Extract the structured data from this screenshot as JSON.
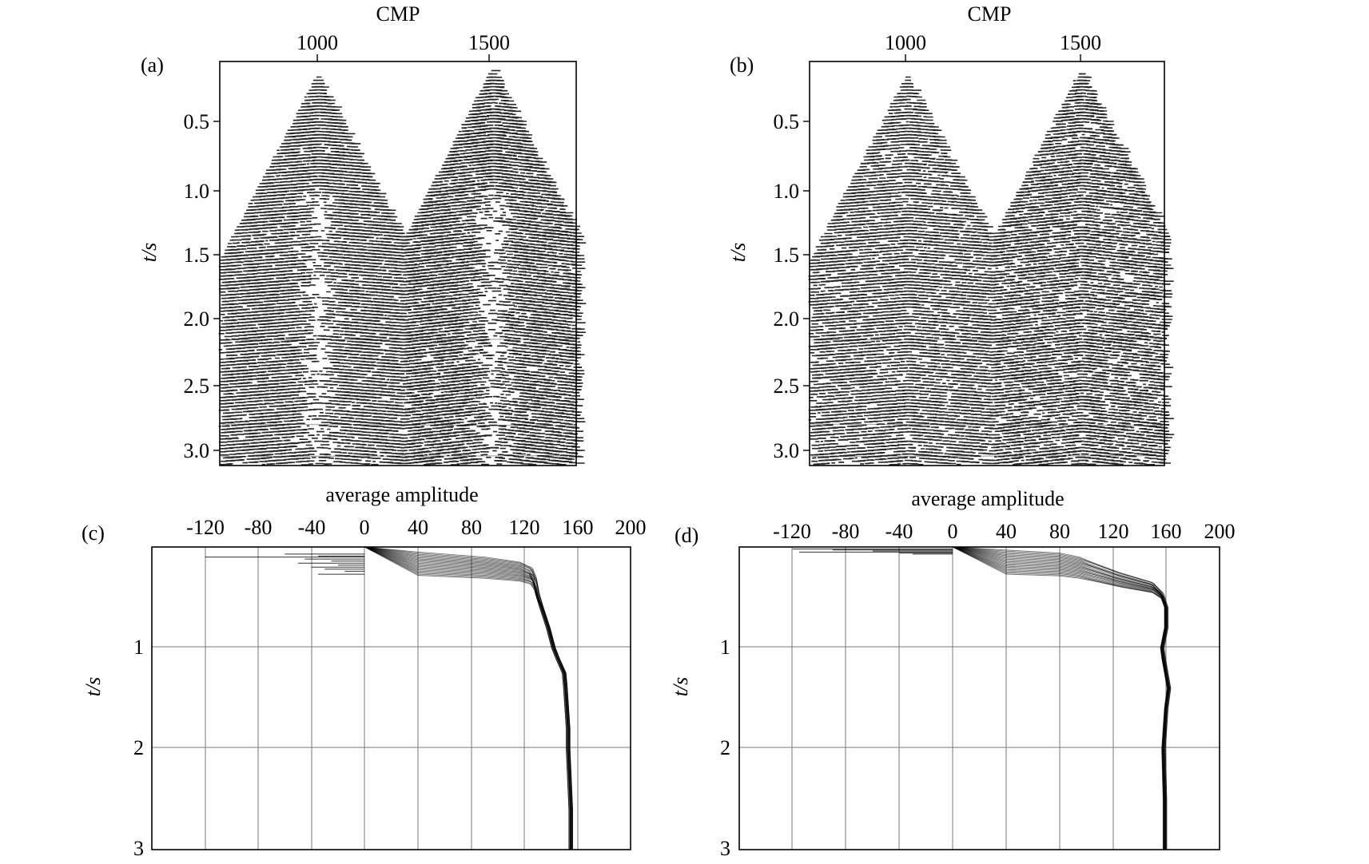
{
  "chart_data": [
    {
      "id": "a",
      "type": "heatmap",
      "panel_label": "(a)",
      "xlabel": "CMP",
      "ylabel": "t/s",
      "x_ticks": [
        1000,
        1500
      ],
      "y_ticks": [
        "0.5",
        "1.0",
        "1.5",
        "2.0",
        "2.5",
        "3.0"
      ],
      "xlim": [
        725,
        1745
      ],
      "ylim": [
        0.0,
        3.12
      ],
      "apexes": [
        {
          "cmp": 1000,
          "t": 0.12,
          "half_width_at_3s": 560
        },
        {
          "cmp": 1500,
          "t": 0.07,
          "half_width_at_3s": 560
        }
      ],
      "near_offset_amplitude": "weak",
      "grid": false
    },
    {
      "id": "b",
      "type": "heatmap",
      "panel_label": "(b)",
      "xlabel": "CMP",
      "ylabel": "t/s",
      "x_ticks": [
        1000,
        1500
      ],
      "y_ticks": [
        "0.5",
        "1.0",
        "1.5",
        "2.0",
        "2.5",
        "3.0"
      ],
      "xlim": [
        725,
        1745
      ],
      "ylim": [
        0.0,
        3.12
      ],
      "apexes": [
        {
          "cmp": 1000,
          "t": 0.12,
          "half_width_at_3s": 560
        },
        {
          "cmp": 1500,
          "t": 0.07,
          "half_width_at_3s": 560
        }
      ],
      "near_offset_amplitude": "uniform",
      "grid": false
    },
    {
      "id": "c",
      "type": "line",
      "panel_label": "(c)",
      "xlabel": "average amplitude",
      "ylabel": "t/s",
      "x_ticks": [
        -120,
        -80,
        -40,
        0,
        40,
        80,
        120,
        160,
        200
      ],
      "y_ticks": [
        1,
        2,
        3
      ],
      "xlim": [
        -160,
        200
      ],
      "ylim": [
        0.0,
        3.0
      ],
      "grid": true,
      "series": [
        {
          "t": [
            0.0,
            0.05,
            0.1,
            0.15,
            0.2,
            0.3,
            0.45,
            0.6,
            0.8,
            1.0,
            1.1,
            1.25,
            1.4,
            1.6,
            1.8,
            2.0,
            2.3,
            2.6,
            3.0
          ],
          "amp": [
            0,
            40,
            90,
            117,
            125,
            128,
            130,
            133,
            138,
            142,
            145,
            150,
            151,
            152,
            153,
            153,
            154,
            155,
            155
          ]
        }
      ],
      "spikes_left": [
        {
          "t": 0.07,
          "amp": -60
        },
        {
          "t": 0.09,
          "amp": -35
        },
        {
          "t": 0.1,
          "amp": -120
        },
        {
          "t": 0.12,
          "amp": -45
        },
        {
          "t": 0.14,
          "amp": -25
        },
        {
          "t": 0.16,
          "amp": -50
        },
        {
          "t": 0.18,
          "amp": -20
        },
        {
          "t": 0.2,
          "amp": -40
        },
        {
          "t": 0.22,
          "amp": -30
        },
        {
          "t": 0.24,
          "amp": -15
        },
        {
          "t": 0.27,
          "amp": -35
        }
      ]
    },
    {
      "id": "d",
      "type": "line",
      "panel_label": "(d)",
      "xlabel": "average amplitude",
      "ylabel": "t/s",
      "x_ticks": [
        -120,
        -80,
        -40,
        0,
        40,
        80,
        120,
        160,
        200
      ],
      "y_ticks": [
        1,
        2,
        3
      ],
      "xlim": [
        -160,
        200
      ],
      "ylim": [
        0.0,
        3.0
      ],
      "grid": true,
      "series": [
        {
          "t": [
            0.0,
            0.03,
            0.06,
            0.1,
            0.15,
            0.25,
            0.35,
            0.45,
            0.6,
            0.8,
            1.0,
            1.1,
            1.25,
            1.4,
            1.6,
            1.8,
            2.0,
            2.5,
            3.0
          ],
          "amp": [
            0,
            40,
            80,
            95,
            105,
            125,
            150,
            157,
            160,
            160,
            157,
            158,
            160,
            162,
            160,
            159,
            158,
            159,
            159
          ]
        }
      ],
      "spikes_left": [
        {
          "t": 0.02,
          "amp": -120
        },
        {
          "t": 0.03,
          "amp": -90
        },
        {
          "t": 0.04,
          "amp": -60
        },
        {
          "t": 0.05,
          "amp": -115
        },
        {
          "t": 0.06,
          "amp": -40
        },
        {
          "t": 0.07,
          "amp": -30
        }
      ]
    }
  ]
}
